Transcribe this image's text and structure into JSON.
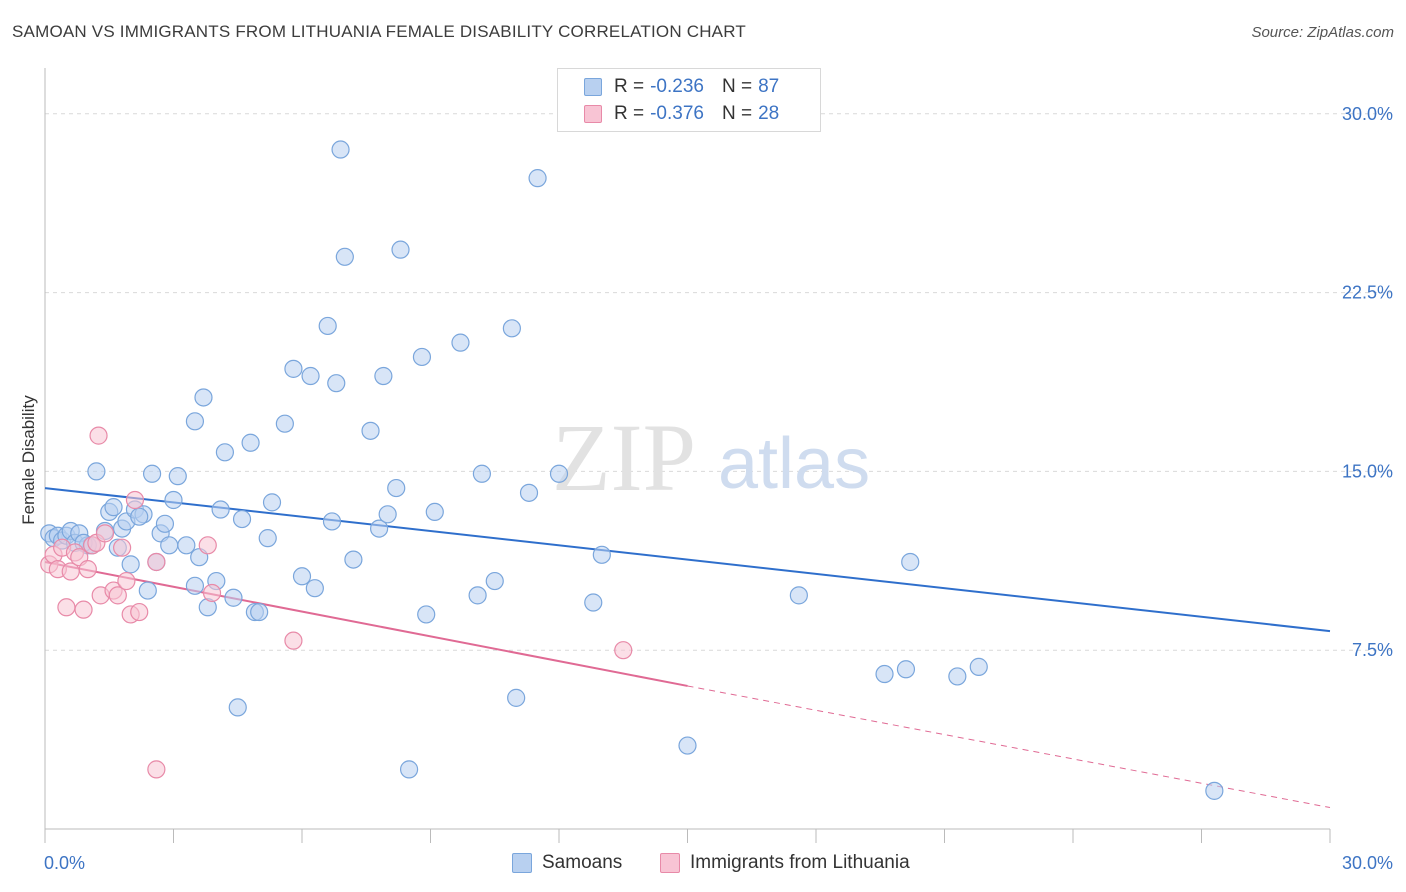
{
  "title": "SAMOAN VS IMMIGRANTS FROM LITHUANIA FEMALE DISABILITY CORRELATION CHART",
  "source": "Source: ZipAtlas.com",
  "watermark": {
    "zip": "ZIP",
    "atlas": "atlas"
  },
  "legend": {
    "rows": [
      {
        "r_label": "R =",
        "r_value": "-0.236",
        "n_label": "N =",
        "n_value": "87"
      },
      {
        "r_label": "R =",
        "r_value": "-0.376",
        "n_label": "N =",
        "n_value": "28"
      }
    ]
  },
  "bottom_legend": {
    "series1": "Samoans",
    "series2": "Immigrants from Lithuania"
  },
  "colors": {
    "blue_fill": "#b8d0f0",
    "blue_stroke": "#7aa6dc",
    "blue_line": "#2f6fcc",
    "pink_fill": "#f8c4d4",
    "pink_stroke": "#e88aa8",
    "pink_line": "#e06a94",
    "tick_text": "#3d74c4",
    "grid": "#d9d9d9"
  },
  "chart_data": {
    "type": "scatter",
    "title": "SAMOAN VS IMMIGRANTS FROM LITHUANIA FEMALE DISABILITY CORRELATION CHART",
    "xlabel": "",
    "ylabel": "Female Disability",
    "xlim": [
      0,
      30
    ],
    "ylim": [
      0,
      31.5
    ],
    "x_tick_labels": [
      "0.0%",
      "30.0%"
    ],
    "y_ticks": [
      7.5,
      15.0,
      22.5,
      30.0
    ],
    "y_tick_labels": [
      "7.5%",
      "15.0%",
      "22.5%",
      "30.0%"
    ],
    "grid": true,
    "legend_position": "top-center",
    "series": [
      {
        "name": "Samoans",
        "r": -0.236,
        "n": 87,
        "trend": {
          "x0": 0.0,
          "y0": 14.3,
          "x1": 30.0,
          "y1": 8.3
        },
        "points": [
          [
            0.1,
            12.4
          ],
          [
            0.2,
            12.2
          ],
          [
            0.3,
            12.3
          ],
          [
            0.4,
            12.1
          ],
          [
            0.5,
            12.3
          ],
          [
            0.6,
            12.5
          ],
          [
            0.7,
            12.0
          ],
          [
            0.8,
            12.4
          ],
          [
            1.0,
            11.9
          ],
          [
            1.2,
            15.0
          ],
          [
            1.4,
            12.5
          ],
          [
            1.5,
            13.3
          ],
          [
            1.6,
            13.5
          ],
          [
            1.7,
            11.8
          ],
          [
            1.8,
            12.6
          ],
          [
            1.9,
            12.9
          ],
          [
            2.0,
            11.1
          ],
          [
            2.1,
            13.4
          ],
          [
            2.3,
            13.2
          ],
          [
            2.4,
            10.0
          ],
          [
            2.5,
            14.9
          ],
          [
            2.6,
            11.2
          ],
          [
            2.7,
            12.4
          ],
          [
            2.8,
            12.8
          ],
          [
            2.9,
            11.9
          ],
          [
            3.0,
            13.8
          ],
          [
            3.1,
            14.8
          ],
          [
            3.3,
            11.9
          ],
          [
            3.5,
            17.1
          ],
          [
            3.5,
            10.2
          ],
          [
            3.6,
            11.4
          ],
          [
            3.7,
            18.1
          ],
          [
            3.8,
            9.3
          ],
          [
            4.0,
            10.4
          ],
          [
            4.1,
            13.4
          ],
          [
            4.2,
            15.8
          ],
          [
            4.4,
            9.7
          ],
          [
            4.5,
            5.1
          ],
          [
            4.6,
            13.0
          ],
          [
            4.8,
            16.2
          ],
          [
            4.9,
            9.1
          ],
          [
            5.0,
            9.1
          ],
          [
            5.2,
            12.2
          ],
          [
            5.3,
            13.7
          ],
          [
            5.6,
            17.0
          ],
          [
            5.8,
            19.3
          ],
          [
            6.0,
            10.6
          ],
          [
            6.2,
            19.0
          ],
          [
            6.3,
            10.1
          ],
          [
            6.6,
            21.1
          ],
          [
            6.7,
            12.9
          ],
          [
            6.8,
            18.7
          ],
          [
            6.9,
            28.5
          ],
          [
            7.0,
            24.0
          ],
          [
            7.2,
            11.3
          ],
          [
            7.6,
            16.7
          ],
          [
            7.8,
            12.6
          ],
          [
            7.9,
            19.0
          ],
          [
            8.0,
            13.2
          ],
          [
            8.2,
            14.3
          ],
          [
            8.3,
            24.3
          ],
          [
            8.5,
            2.5
          ],
          [
            8.8,
            19.8
          ],
          [
            8.9,
            9.0
          ],
          [
            9.1,
            13.3
          ],
          [
            9.7,
            20.4
          ],
          [
            10.1,
            9.8
          ],
          [
            10.2,
            14.9
          ],
          [
            10.5,
            10.4
          ],
          [
            10.9,
            21.0
          ],
          [
            11.0,
            5.5
          ],
          [
            11.3,
            14.1
          ],
          [
            11.5,
            27.3
          ],
          [
            12.0,
            14.9
          ],
          [
            12.8,
            9.5
          ],
          [
            13.0,
            11.5
          ],
          [
            15.0,
            3.5
          ],
          [
            17.6,
            9.8
          ],
          [
            19.6,
            6.5
          ],
          [
            20.1,
            6.7
          ],
          [
            20.2,
            11.2
          ],
          [
            21.3,
            6.4
          ],
          [
            21.8,
            6.8
          ],
          [
            27.3,
            1.6
          ],
          [
            0.9,
            12.0
          ],
          [
            1.1,
            11.9
          ],
          [
            2.2,
            13.1
          ]
        ]
      },
      {
        "name": "Immigrants from Lithuania",
        "r": -0.376,
        "n": 28,
        "trend": {
          "x0": 0.0,
          "y0": 11.2,
          "x1": 15.0,
          "y1": 6.0,
          "dash_x1": 30.0,
          "dash_y1": 0.9
        },
        "points": [
          [
            0.1,
            11.1
          ],
          [
            0.2,
            11.5
          ],
          [
            0.3,
            10.9
          ],
          [
            0.4,
            11.8
          ],
          [
            0.5,
            9.3
          ],
          [
            0.6,
            10.8
          ],
          [
            0.7,
            11.6
          ],
          [
            0.8,
            11.4
          ],
          [
            0.9,
            9.2
          ],
          [
            1.0,
            10.9
          ],
          [
            1.1,
            11.9
          ],
          [
            1.2,
            12.0
          ],
          [
            1.3,
            9.8
          ],
          [
            1.4,
            12.4
          ],
          [
            1.6,
            10.0
          ],
          [
            1.7,
            9.8
          ],
          [
            1.8,
            11.8
          ],
          [
            1.9,
            10.4
          ],
          [
            2.0,
            9.0
          ],
          [
            2.1,
            13.8
          ],
          [
            2.2,
            9.1
          ],
          [
            1.25,
            16.5
          ],
          [
            2.6,
            11.2
          ],
          [
            2.6,
            2.5
          ],
          [
            3.8,
            11.9
          ],
          [
            3.9,
            9.9
          ],
          [
            5.8,
            7.9
          ],
          [
            13.5,
            7.5
          ]
        ]
      }
    ]
  }
}
